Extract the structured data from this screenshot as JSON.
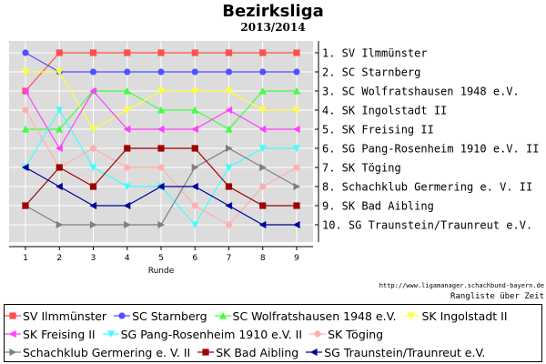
{
  "title": "Bezirksliga",
  "subtitle": "2013/2014",
  "footer_url": "http://www.ligamanager.schachbund-bayern.de",
  "footer_note": "Rangliste über Zeit",
  "chart_data": {
    "type": "line",
    "xlabel": "Runde",
    "x": [
      1,
      2,
      3,
      4,
      5,
      6,
      7,
      8,
      9
    ],
    "ylim": [
      1,
      10
    ],
    "y_inverted": true,
    "grid": true,
    "legend_position": "bottom",
    "rank_labels": [
      "1. SV Ilmmünster",
      "2. SC Starnberg",
      "3. SC Wolfratshausen 1948 e.V.",
      "4. SK Ingolstadt II",
      "5. SK Freising II",
      "6. SG Pang-Rosenheim 1910 e.V. II",
      "7. SK Töging",
      "8. Schachklub Germering e. V. II",
      "9. SK Bad Aibling",
      "10. SG Traunstein/Traunreut e.V."
    ],
    "series": [
      {
        "name": "SV Ilmmünster",
        "color": "#ff5050",
        "marker": "square",
        "values": [
          3,
          1,
          1,
          1,
          1,
          1,
          1,
          1,
          1
        ]
      },
      {
        "name": "SC Starnberg",
        "color": "#5050ff",
        "marker": "circle",
        "values": [
          1,
          2,
          2,
          2,
          2,
          2,
          2,
          2,
          2
        ]
      },
      {
        "name": "SC Wolfratshausen 1948 e.V.",
        "color": "#40ff40",
        "marker": "triangle-up",
        "values": [
          5,
          5,
          3,
          3,
          4,
          4,
          5,
          3,
          3
        ]
      },
      {
        "name": "SK Ingolstadt II",
        "color": "#ffff40",
        "marker": "triangle-down",
        "values": [
          2,
          2,
          5,
          4,
          3,
          3,
          3,
          4,
          4
        ]
      },
      {
        "name": "SK Freising II",
        "color": "#ff40ff",
        "marker": "triangle-left",
        "values": [
          3,
          6,
          3,
          5,
          5,
          5,
          4,
          5,
          5
        ]
      },
      {
        "name": "SG Pang-Rosenheim 1910 e.V. II",
        "color": "#40ffff",
        "marker": "triangle-down",
        "values": [
          7,
          4,
          7,
          8,
          8,
          10,
          7,
          6,
          6
        ]
      },
      {
        "name": "SK Töging",
        "color": "#ffb0b0",
        "marker": "circle",
        "values": [
          4,
          7,
          6,
          7,
          7,
          9,
          10,
          8,
          7
        ]
      },
      {
        "name": "Schachklub Germering e. V. II",
        "color": "#808080",
        "marker": "triangle-right",
        "values": [
          9,
          10,
          10,
          10,
          10,
          7,
          6,
          7,
          8
        ]
      },
      {
        "name": "SK Bad Aibling",
        "color": "#a00000",
        "marker": "square",
        "values": [
          9,
          7,
          8,
          6,
          6,
          6,
          8,
          9,
          9
        ]
      },
      {
        "name": "SG Traunstein/Traunreut e.V.",
        "color": "#0000a0",
        "marker": "triangle-left",
        "values": [
          7,
          8,
          9,
          9,
          8,
          8,
          9,
          10,
          10
        ]
      }
    ]
  }
}
